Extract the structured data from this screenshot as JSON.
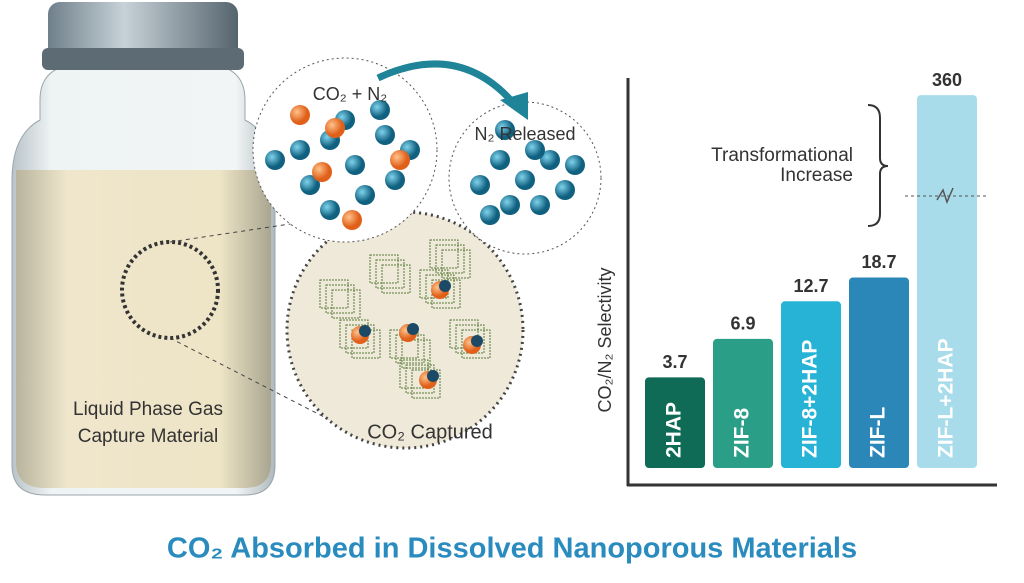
{
  "chart_data": {
    "type": "bar",
    "title": "CO₂ Absorbed in Dissolved Nanoporous Materials",
    "y_label": "CO₂/N₂ Selectivity",
    "categories": [
      "2HAP",
      "ZIF-8",
      "ZIF-8+2HAP",
      "ZIF-L",
      "ZIF-L+2HAP"
    ],
    "values": [
      3.7,
      6.9,
      12.7,
      18.7,
      360
    ],
    "colors": [
      "#0f6b55",
      "#2a9e86",
      "#27b3d6",
      "#2b87b8",
      "#a8dcea"
    ],
    "ylim": [
      0.85,
      460
    ],
    "log_scale": true,
    "annotation": [
      "Transformational",
      "Increase"
    ]
  },
  "illustration": {
    "mixture_label": "CO₂ + N₂",
    "released_label": "N₂ Released",
    "captured_label": "CO₂ Captured",
    "vial_label": [
      "Liquid Phase Gas",
      "Capture Material"
    ]
  }
}
